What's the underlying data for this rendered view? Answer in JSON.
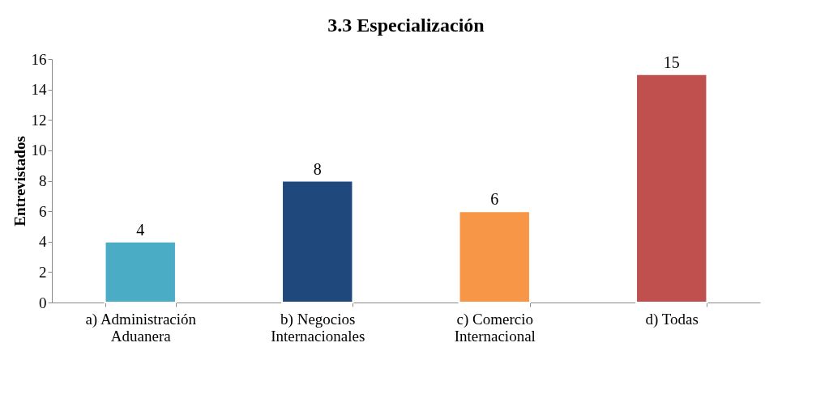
{
  "chart_data": {
    "type": "bar",
    "title": "3.3 Especialización",
    "ylabel": "Entrevistados",
    "categories": [
      "a) Administración\nAduanera",
      "b) Negocios\nInternacionales",
      "c) Comercio\nInternacional",
      "d) Todas"
    ],
    "values": [
      4,
      8,
      6,
      15
    ],
    "colors": [
      "#4bacc6",
      "#1f497d",
      "#f79646",
      "#c0504d"
    ],
    "ylim": [
      0,
      16
    ],
    "yticks": [
      0,
      2,
      4,
      6,
      8,
      10,
      12,
      14,
      16
    ],
    "grid": false,
    "data_labels": true
  }
}
